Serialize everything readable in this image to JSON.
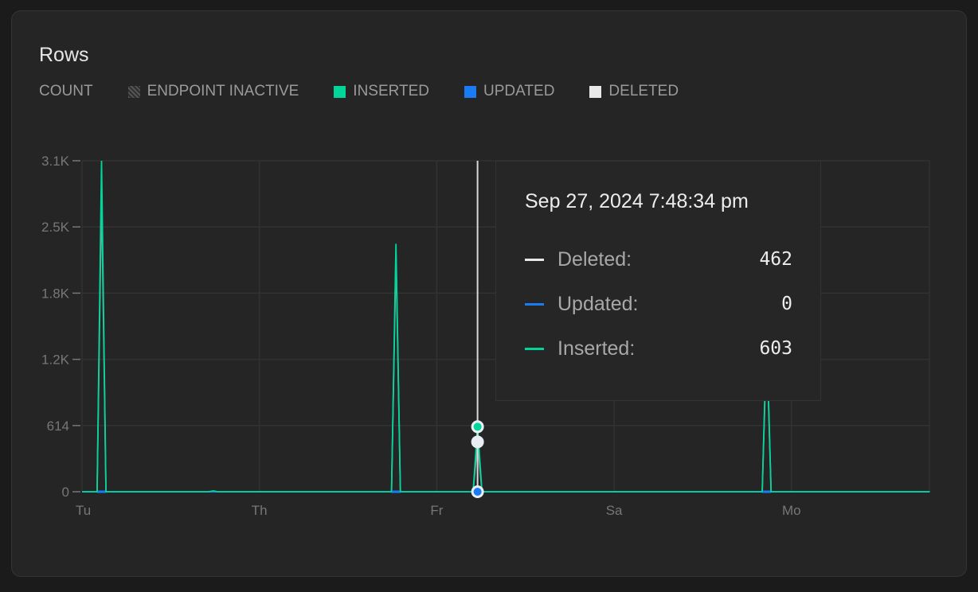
{
  "title": "Rows",
  "legend": {
    "count_label": "COUNT",
    "items": [
      {
        "label": "ENDPOINT INACTIVE",
        "icon": "hatch-swatch"
      },
      {
        "label": "INSERTED",
        "color": "#00d59a"
      },
      {
        "label": "UPDATED",
        "color": "#1a7cf5"
      },
      {
        "label": "DELETED",
        "color": "#e8e8e8"
      }
    ]
  },
  "tooltip": {
    "date": "Sep 27, 2024 7:48:34 pm",
    "rows": [
      {
        "label": "Deleted:",
        "value": "462",
        "color": "#e8e8e8"
      },
      {
        "label": "Updated:",
        "value": "0",
        "color": "#1a7cf5"
      },
      {
        "label": "Inserted:",
        "value": "603",
        "color": "#00d59a"
      }
    ]
  },
  "chart_data": {
    "type": "line",
    "ylim": [
      0,
      3070
    ],
    "y_ticks": [
      "0",
      "614",
      "1.2K",
      "1.8K",
      "2.5K",
      "3.1K"
    ],
    "y_tick_values": [
      0,
      614,
      1228,
      1842,
      2456,
      3070
    ],
    "x_ticks": [
      "Tu",
      "Th",
      "Fr",
      "Sa",
      "Mo"
    ],
    "x_tick_values": [
      0,
      1,
      2,
      3,
      4
    ],
    "xlim": [
      0,
      4.78
    ],
    "grid": true,
    "hover_x": 2.23,
    "series": [
      {
        "name": "Deleted",
        "color": "#9a9a9a",
        "peaks": [
          [
            0.11,
            2780
          ],
          [
            1.77,
            2200
          ],
          [
            2.23,
            462
          ],
          [
            3.86,
            1400
          ]
        ]
      },
      {
        "name": "Updated",
        "color": "#1a7cf5",
        "peaks": [
          [
            0.11,
            0
          ],
          [
            1.77,
            0
          ],
          [
            2.23,
            0
          ],
          [
            3.86,
            0
          ]
        ]
      },
      {
        "name": "Inserted",
        "color": "#00d59a",
        "peaks": [
          [
            0.11,
            3070
          ],
          [
            0.74,
            8
          ],
          [
            1.77,
            2300
          ],
          [
            2.23,
            603
          ],
          [
            3.86,
            1500
          ]
        ]
      }
    ]
  }
}
